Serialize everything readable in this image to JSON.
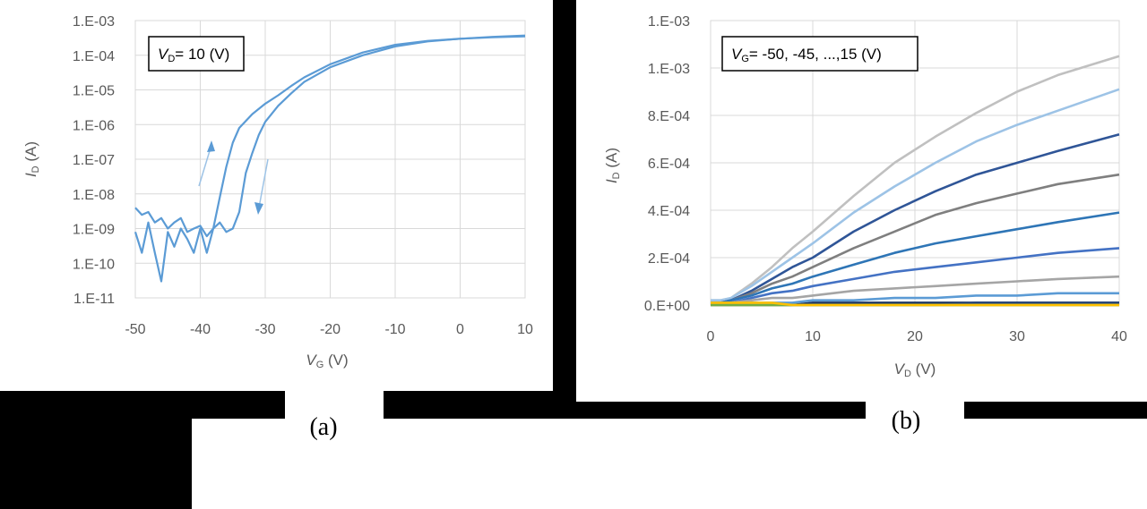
{
  "chart_data": [
    {
      "type": "line",
      "panel_label": "(a)",
      "annotation": {
        "var": "V",
        "sub": "D",
        "text": "= 10 (V)"
      },
      "xlabel": {
        "var": "V",
        "sub": "G",
        "unit": " (V)"
      },
      "ylabel": {
        "var": "I",
        "sub": "D",
        "unit": " (A)"
      },
      "xlim": [
        -50,
        10
      ],
      "ylog": true,
      "ylim": [
        1e-11,
        0.001
      ],
      "x_ticks": [
        "-50",
        "-40",
        "-30",
        "-20",
        "-10",
        "0",
        "10"
      ],
      "y_ticks": [
        "1.E-11",
        "1.E-10",
        "1.E-09",
        "1.E-08",
        "1.E-07",
        "1.E-06",
        "1.E-05",
        "1.E-04",
        "1.E-03"
      ],
      "grid": true,
      "series_color": "#5b9bd5",
      "series": [
        {
          "sweep": "forward",
          "x": [
            -50,
            -49,
            -48,
            -47,
            -46,
            -45,
            -44,
            -43,
            -42,
            -41,
            -40,
            -39,
            -38,
            -37,
            -36,
            -35,
            -34,
            -32,
            -30,
            -28,
            -26,
            -24,
            -20,
            -15,
            -10,
            -5,
            0,
            5,
            10
          ],
          "y": [
            8e-10,
            2e-10,
            1.5e-09,
            2e-10,
            3e-11,
            8e-10,
            3e-10,
            1e-09,
            5e-10,
            2e-10,
            1e-09,
            2e-10,
            1e-09,
            8e-09,
            6e-08,
            3e-07,
            8e-07,
            2e-06,
            4e-06,
            7e-06,
            1.3e-05,
            2.3e-05,
            5.5e-05,
            0.00012,
            0.0002,
            0.00026,
            0.0003,
            0.00033,
            0.00035
          ]
        },
        {
          "sweep": "reverse",
          "x": [
            -50,
            -49,
            -48,
            -47,
            -46,
            -45,
            -44,
            -43,
            -42,
            -41,
            -40,
            -39,
            -38,
            -37,
            -36,
            -35,
            -34,
            -33,
            -32,
            -31,
            -30,
            -28,
            -26,
            -24,
            -20,
            -15,
            -10,
            -5,
            0,
            5,
            10
          ],
          "y": [
            4e-09,
            2.5e-09,
            3e-09,
            1.5e-09,
            2e-09,
            1e-09,
            1.5e-09,
            2e-09,
            8e-10,
            1e-09,
            1.2e-09,
            6e-10,
            1e-09,
            1.5e-09,
            8e-10,
            1e-09,
            3e-09,
            4e-08,
            1.5e-07,
            5e-07,
            1.2e-06,
            3.5e-06,
            8e-06,
            1.7e-05,
            4.5e-05,
            0.0001,
            0.00018,
            0.00025,
            0.0003,
            0.00034,
            0.00037
          ]
        }
      ]
    },
    {
      "type": "line",
      "panel_label": "(b)",
      "annotation": {
        "var": "V",
        "sub": "G",
        "text": "= -50, -45, ...,15 (V)"
      },
      "xlabel": {
        "var": "V",
        "sub": "D",
        "unit": " (V)"
      },
      "ylabel": {
        "var": "I",
        "sub": "D",
        "unit": " (A)"
      },
      "xlim": [
        0,
        40
      ],
      "ylim": [
        0,
        0.0012
      ],
      "x_ticks": [
        "0",
        "10",
        "20",
        "30",
        "40"
      ],
      "y_ticks": [
        "0.E+00",
        "2.E-04",
        "4.E-04",
        "6.E-04",
        "8.E-04",
        "1.E-03",
        "1.E-03"
      ],
      "grid": true,
      "x": [
        0,
        1,
        2,
        4,
        6,
        8,
        10,
        14,
        18,
        22,
        26,
        30,
        34,
        40
      ],
      "series": [
        {
          "color": "#c0c0c0",
          "y": [
            2e-05,
            2e-05,
            3e-05,
            9e-05,
            0.00016,
            0.00024,
            0.00031,
            0.00046,
            0.0006,
            0.00071,
            0.00081,
            0.0009,
            0.00097,
            0.00105
          ]
        },
        {
          "color": "#9dc3e6",
          "y": [
            2e-05,
            2e-05,
            3e-05,
            8e-05,
            0.00014,
            0.0002,
            0.00026,
            0.00039,
            0.0005,
            0.0006,
            0.00069,
            0.00076,
            0.00082,
            0.00091
          ]
        },
        {
          "color": "#2f5597",
          "y": [
            1e-05,
            1e-05,
            2e-05,
            6e-05,
            0.00011,
            0.00016,
            0.0002,
            0.00031,
            0.0004,
            0.00048,
            0.00055,
            0.0006,
            0.00065,
            0.00072
          ]
        },
        {
          "color": "#7f7f7f",
          "y": [
            1e-05,
            1e-05,
            2e-05,
            5e-05,
            9e-05,
            0.00012,
            0.00016,
            0.00024,
            0.00031,
            0.00038,
            0.00043,
            0.00047,
            0.00051,
            0.00055
          ]
        },
        {
          "color": "#2e75b6",
          "y": [
            1e-05,
            1e-05,
            2e-05,
            4e-05,
            7e-05,
            9e-05,
            0.00012,
            0.00017,
            0.00022,
            0.00026,
            0.00029,
            0.00032,
            0.00035,
            0.00039
          ]
        },
        {
          "color": "#4472c4",
          "y": [
            1e-05,
            1e-05,
            1e-05,
            3e-05,
            5e-05,
            6e-05,
            8e-05,
            0.00011,
            0.00014,
            0.00016,
            0.00018,
            0.0002,
            0.00022,
            0.00024
          ]
        },
        {
          "color": "#a5a5a5",
          "y": [
            0,
            0,
            1e-05,
            2e-05,
            3e-05,
            3e-05,
            4e-05,
            6e-05,
            7e-05,
            8e-05,
            9e-05,
            0.0001,
            0.00011,
            0.00012
          ]
        },
        {
          "color": "#5b9bd5",
          "y": [
            0,
            0,
            0,
            1e-05,
            1e-05,
            1e-05,
            2e-05,
            2e-05,
            3e-05,
            3e-05,
            4e-05,
            4e-05,
            5e-05,
            5e-05
          ]
        },
        {
          "color": "#1f3864",
          "y": [
            0,
            0,
            0,
            0,
            0,
            0,
            1e-05,
            1e-05,
            1e-05,
            1e-05,
            1e-05,
            1e-05,
            1e-05,
            1e-05
          ]
        },
        {
          "color": "#264478",
          "y": [
            0,
            0,
            0,
            0,
            0,
            0,
            0,
            0,
            0,
            0,
            1e-05,
            1e-05,
            1e-05,
            1e-05
          ]
        },
        {
          "color": "#ed7d31",
          "y": [
            0,
            0,
            0,
            0,
            0,
            0,
            0,
            0,
            0,
            0,
            0,
            0,
            0,
            0
          ]
        },
        {
          "color": "#a9d18e",
          "y": [
            0,
            0,
            0,
            0,
            0,
            0,
            0,
            0,
            0,
            0,
            0,
            0,
            0,
            0
          ]
        },
        {
          "color": "#70ad47",
          "y": [
            0,
            0,
            0,
            0,
            0,
            0,
            0,
            0,
            0,
            0,
            0,
            0,
            0,
            0
          ]
        },
        {
          "color": "#ffc000",
          "y": [
            1e-05,
            1e-05,
            1e-05,
            1e-05,
            1e-05,
            0,
            0,
            0,
            0,
            0,
            0,
            0,
            0,
            0
          ]
        }
      ]
    }
  ]
}
